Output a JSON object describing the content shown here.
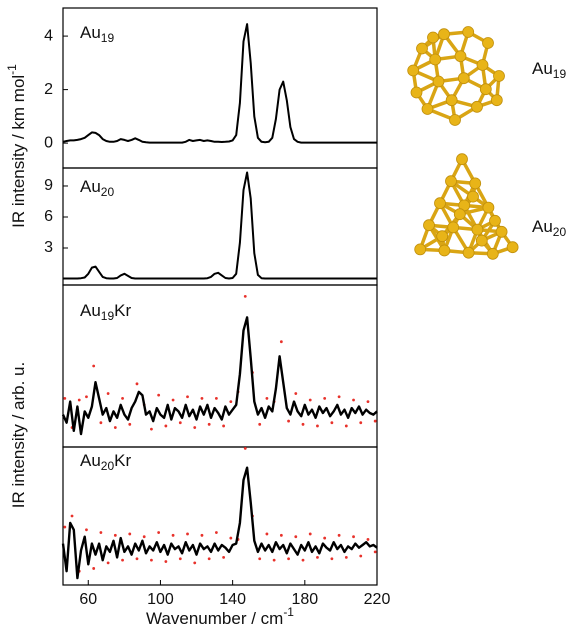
{
  "chart_data": [
    {
      "type": "line",
      "label": {
        "base": "Au",
        "sub": "19"
      },
      "ylabel": {
        "text": "IR intensity / km mol",
        "sup": "-1"
      },
      "x": [
        46,
        48,
        50,
        52,
        54,
        56,
        58,
        60,
        62,
        64,
        66,
        68,
        70,
        72,
        74,
        76,
        78,
        80,
        82,
        84,
        86,
        88,
        90,
        92,
        94,
        96,
        98,
        100,
        102,
        104,
        106,
        108,
        110,
        112,
        114,
        116,
        118,
        120,
        122,
        124,
        126,
        128,
        130,
        132,
        134,
        136,
        138,
        140,
        142,
        144,
        146,
        148,
        150,
        152,
        154,
        156,
        158,
        160,
        162,
        164,
        166,
        168,
        170,
        172,
        174,
        176,
        178,
        180,
        182,
        184,
        186,
        188,
        190,
        192,
        194,
        196,
        198,
        200,
        202,
        204,
        206,
        208,
        210,
        212,
        214,
        216,
        218,
        220
      ],
      "series": [
        {
          "color": "#000000",
          "values": [
            0.05,
            0.08,
            0.1,
            0.1,
            0.12,
            0.15,
            0.2,
            0.3,
            0.4,
            0.38,
            0.3,
            0.15,
            0.08,
            0.05,
            0.05,
            0.08,
            0.15,
            0.12,
            0.08,
            0.12,
            0.18,
            0.12,
            0.05,
            0.03,
            0.02,
            0.02,
            0.02,
            0.02,
            0.02,
            0.02,
            0.02,
            0.02,
            0.02,
            0.02,
            0.05,
            0.12,
            0.08,
            0.1,
            0.12,
            0.08,
            0.1,
            0.08,
            0.05,
            0.05,
            0.04,
            0.05,
            0.06,
            0.1,
            0.3,
            1.5,
            3.8,
            4.45,
            3.0,
            1.0,
            0.2,
            0.05,
            0.03,
            0.05,
            0.2,
            0.9,
            2.0,
            2.3,
            1.6,
            0.6,
            0.15,
            0.05,
            0.02,
            0.02,
            0.02,
            0.02,
            0.02,
            0.02,
            0.02,
            0.02,
            0.02,
            0.02,
            0.02,
            0.02,
            0.02,
            0.02,
            0.02,
            0.02,
            0.02,
            0.02,
            0.02,
            0.02,
            0.02,
            0.02
          ]
        }
      ],
      "xlim": [
        46,
        220
      ],
      "ylim": [
        -0.93,
        5.05
      ],
      "yticks": [
        0,
        2,
        4
      ]
    },
    {
      "type": "line",
      "label": {
        "base": "Au",
        "sub": "20"
      },
      "x": [
        46,
        48,
        50,
        52,
        54,
        56,
        58,
        60,
        62,
        64,
        66,
        68,
        70,
        72,
        74,
        76,
        78,
        80,
        82,
        84,
        86,
        88,
        90,
        92,
        94,
        96,
        98,
        100,
        102,
        104,
        106,
        108,
        110,
        112,
        114,
        116,
        118,
        120,
        122,
        124,
        126,
        128,
        130,
        132,
        134,
        136,
        138,
        140,
        142,
        144,
        146,
        148,
        150,
        152,
        154,
        156,
        158,
        160,
        162,
        164,
        166,
        168,
        170,
        172,
        174,
        176,
        178,
        180,
        182,
        184,
        186,
        188,
        190,
        192,
        194,
        196,
        198,
        200,
        202,
        204,
        206,
        208,
        210,
        212,
        214,
        216,
        218,
        220
      ],
      "series": [
        {
          "color": "#000000",
          "values": [
            0.05,
            0.05,
            0.05,
            0.05,
            0.05,
            0.08,
            0.15,
            0.5,
            1.1,
            1.2,
            0.7,
            0.2,
            0.08,
            0.05,
            0.05,
            0.1,
            0.35,
            0.5,
            0.3,
            0.1,
            0.05,
            0.05,
            0.05,
            0.05,
            0.05,
            0.05,
            0.05,
            0.05,
            0.05,
            0.05,
            0.05,
            0.05,
            0.05,
            0.05,
            0.05,
            0.05,
            0.05,
            0.05,
            0.05,
            0.05,
            0.08,
            0.2,
            0.5,
            0.6,
            0.35,
            0.1,
            0.05,
            0.1,
            0.5,
            3.5,
            8.6,
            10.3,
            7.8,
            2.5,
            0.4,
            0.08,
            0.05,
            0.05,
            0.05,
            0.05,
            0.05,
            0.05,
            0.05,
            0.05,
            0.05,
            0.05,
            0.05,
            0.05,
            0.05,
            0.05,
            0.05,
            0.05,
            0.05,
            0.05,
            0.05,
            0.05,
            0.05,
            0.05,
            0.05,
            0.05,
            0.05,
            0.05,
            0.05,
            0.05,
            0.05,
            0.05,
            0.05,
            0.05
          ]
        }
      ],
      "xlim": [
        46,
        220
      ],
      "ylim": [
        -0.58,
        10.74
      ],
      "yticks": [
        3,
        6,
        9
      ]
    },
    {
      "type": "line",
      "label": {
        "base": "Au",
        "sub": "19",
        "suffix": "Kr"
      },
      "ylabel": {
        "text": "IR intensity / arb. u."
      },
      "x": [
        46,
        48,
        50,
        52,
        54,
        56,
        58,
        60,
        62,
        64,
        66,
        68,
        70,
        72,
        74,
        76,
        78,
        80,
        82,
        84,
        86,
        88,
        90,
        92,
        94,
        96,
        98,
        100,
        102,
        104,
        106,
        108,
        110,
        112,
        114,
        116,
        118,
        120,
        122,
        124,
        126,
        128,
        130,
        132,
        134,
        136,
        138,
        140,
        142,
        144,
        146,
        148,
        150,
        152,
        154,
        156,
        158,
        160,
        162,
        164,
        166,
        168,
        170,
        172,
        174,
        176,
        178,
        180,
        182,
        184,
        186,
        188,
        190,
        192,
        194,
        196,
        198,
        200,
        202,
        204,
        206,
        208,
        210,
        212,
        214,
        216,
        218,
        220
      ],
      "series": [
        {
          "color": "#000000",
          "values": [
            2.0,
            1.5,
            2.8,
            1.0,
            2.5,
            0.8,
            2.2,
            1.8,
            2.5,
            4.0,
            3.0,
            2.0,
            2.4,
            1.6,
            2.2,
            1.8,
            2.6,
            2.0,
            1.7,
            2.4,
            2.8,
            3.4,
            3.2,
            2.0,
            2.2,
            1.6,
            2.4,
            2.0,
            1.8,
            2.6,
            1.7,
            2.4,
            2.2,
            1.8,
            2.6,
            1.9,
            2.3,
            1.7,
            2.5,
            2.0,
            2.6,
            1.8,
            2.4,
            2.1,
            1.7,
            2.5,
            2.0,
            2.3,
            2.6,
            4.5,
            7.2,
            8.0,
            5.5,
            2.8,
            2.0,
            2.4,
            1.8,
            2.5,
            2.2,
            3.6,
            5.6,
            4.0,
            2.4,
            2.0,
            2.8,
            2.2,
            1.9,
            2.6,
            2.0,
            2.3,
            1.8,
            2.5,
            2.1,
            2.4,
            1.9,
            2.2,
            2.6,
            2.0,
            2.3,
            1.8,
            2.4,
            2.1,
            2.5,
            2.0,
            2.3,
            2.1,
            2.0,
            2.2
          ]
        }
      ],
      "points": {
        "color": "#e8322b",
        "x": [
          47,
          51,
          55,
          59,
          63,
          67,
          71,
          75,
          79,
          83,
          87,
          91,
          95,
          99,
          103,
          107,
          111,
          115,
          119,
          123,
          127,
          131,
          135,
          139,
          143,
          147,
          151,
          155,
          159,
          163,
          167,
          171,
          175,
          179,
          183,
          187,
          191,
          195,
          199,
          203,
          207,
          211,
          215,
          219
        ],
        "values": [
          3.0,
          1.2,
          2.9,
          3.1,
          5.0,
          1.5,
          3.3,
          1.2,
          3.0,
          1.4,
          3.9,
          2.6,
          1.1,
          3.2,
          1.3,
          2.9,
          1.5,
          3.1,
          1.2,
          3.0,
          1.4,
          3.0,
          1.3,
          2.8,
          3.4,
          9.3,
          4.6,
          1.4,
          3.0,
          2.8,
          6.5,
          1.6,
          3.3,
          1.4,
          2.9,
          1.3,
          3.0,
          1.5,
          3.1,
          1.3,
          2.9,
          1.5,
          2.8,
          1.6
        ]
      },
      "xlim": [
        46,
        220
      ],
      "ylim": [
        0,
        10
      ]
    },
    {
      "type": "line",
      "label": {
        "base": "Au",
        "sub": "20",
        "suffix": "Kr"
      },
      "xlabel": {
        "text": "Wavenumber / cm",
        "sup": "-1"
      },
      "x": [
        46,
        48,
        50,
        52,
        54,
        56,
        58,
        60,
        62,
        64,
        66,
        68,
        70,
        72,
        74,
        76,
        78,
        80,
        82,
        84,
        86,
        88,
        90,
        92,
        94,
        96,
        98,
        100,
        102,
        104,
        106,
        108,
        110,
        112,
        114,
        116,
        118,
        120,
        122,
        124,
        126,
        128,
        130,
        132,
        134,
        136,
        138,
        140,
        142,
        144,
        146,
        148,
        150,
        152,
        154,
        156,
        158,
        160,
        162,
        164,
        166,
        168,
        170,
        172,
        174,
        176,
        178,
        180,
        182,
        184,
        186,
        188,
        190,
        192,
        194,
        196,
        198,
        200,
        202,
        204,
        206,
        208,
        210,
        212,
        214,
        216,
        218,
        220
      ],
      "series": [
        {
          "color": "#000000",
          "values": [
            3.0,
            1.0,
            4.5,
            4.0,
            0.5,
            2.5,
            3.5,
            1.5,
            3.0,
            2.2,
            3.0,
            1.8,
            2.8,
            2.4,
            3.2,
            2.0,
            3.4,
            2.4,
            2.8,
            2.2,
            3.0,
            2.5,
            3.2,
            2.3,
            2.8,
            2.5,
            3.1,
            2.4,
            2.9,
            2.2,
            3.0,
            2.6,
            2.8,
            2.3,
            3.1,
            2.5,
            2.9,
            2.2,
            3.0,
            2.6,
            2.8,
            2.4,
            3.0,
            2.5,
            2.9,
            2.7,
            2.4,
            2.9,
            3.0,
            4.5,
            7.6,
            8.5,
            6.0,
            3.2,
            2.4,
            3.0,
            2.5,
            2.9,
            2.4,
            3.1,
            2.6,
            2.9,
            2.3,
            3.0,
            2.6,
            2.2,
            2.9,
            2.5,
            3.1,
            2.4,
            2.8,
            2.3,
            3.0,
            2.7,
            2.5,
            3.1,
            2.6,
            2.9,
            2.4,
            2.8,
            2.6,
            3.0,
            2.7,
            2.9,
            3.1,
            2.8,
            2.9,
            2.7
          ]
        }
      ],
      "points": {
        "color": "#e8322b",
        "x": [
          47,
          51,
          55,
          59,
          63,
          67,
          71,
          75,
          79,
          83,
          87,
          91,
          95,
          99,
          103,
          107,
          111,
          115,
          119,
          123,
          127,
          131,
          135,
          139,
          143,
          147,
          151,
          155,
          159,
          163,
          167,
          171,
          175,
          179,
          183,
          187,
          191,
          195,
          199,
          203,
          207,
          211,
          215,
          219
        ],
        "values": [
          4.2,
          5.0,
          1.0,
          4.0,
          1.2,
          3.8,
          1.6,
          3.6,
          1.8,
          3.7,
          1.9,
          3.5,
          1.8,
          3.8,
          1.7,
          3.6,
          1.9,
          3.7,
          1.6,
          3.6,
          1.9,
          3.8,
          2.0,
          3.4,
          3.3,
          9.9,
          5.0,
          1.9,
          3.7,
          1.8,
          3.6,
          1.9,
          3.5,
          1.8,
          3.7,
          2.0,
          3.4,
          1.9,
          3.6,
          2.0,
          3.5,
          2.1,
          3.3,
          2.4
        ]
      },
      "xlim": [
        46,
        220
      ],
      "ylim": [
        0,
        10
      ],
      "xticks": [
        60,
        100,
        140,
        180,
        220
      ]
    }
  ],
  "structures": [
    {
      "base": "Au",
      "sub": "19"
    },
    {
      "base": "Au",
      "sub": "20"
    }
  ]
}
